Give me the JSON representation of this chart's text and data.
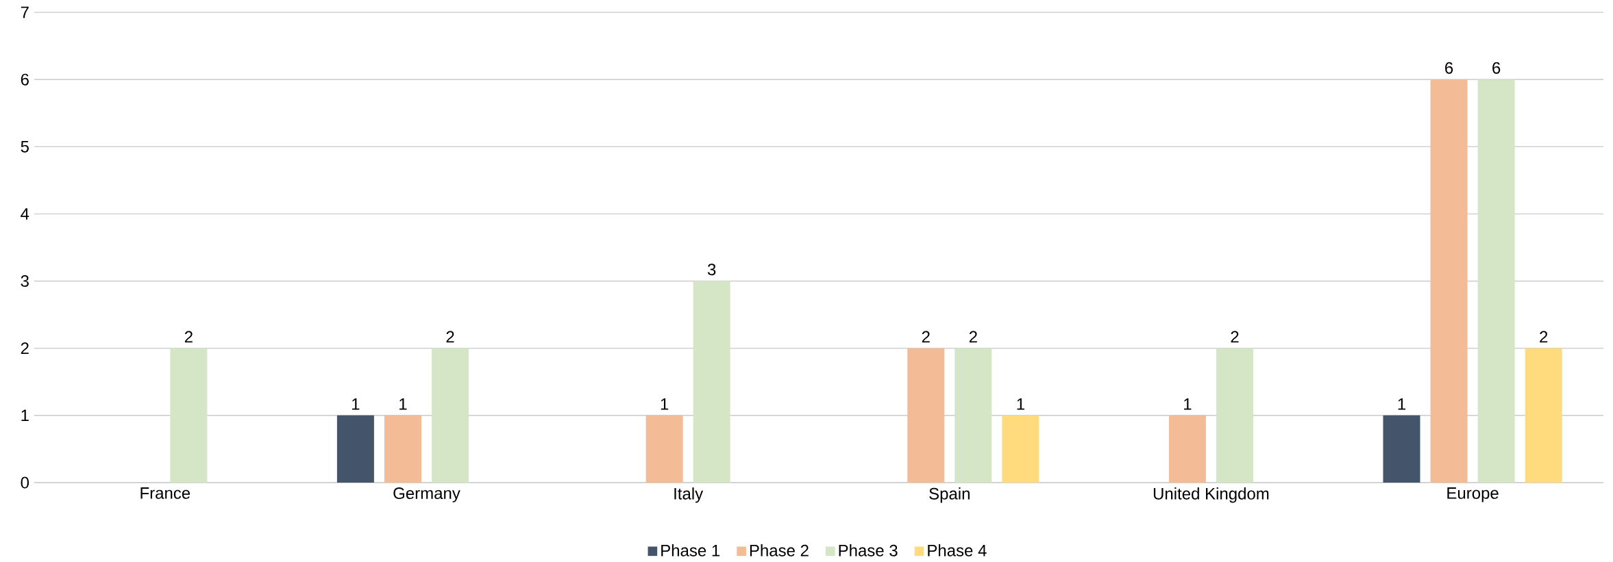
{
  "chart_data": {
    "type": "bar",
    "categories": [
      "France",
      "Germany",
      "Italy",
      "Spain",
      "United Kingdom",
      "Europe"
    ],
    "series": [
      {
        "name": "Phase 1",
        "color": "#44546a",
        "values": [
          null,
          1,
          null,
          null,
          null,
          1
        ]
      },
      {
        "name": "Phase 2",
        "color": "#f4bc96",
        "values": [
          null,
          1,
          1,
          2,
          1,
          6
        ]
      },
      {
        "name": "Phase 3",
        "color": "#d5e6c6",
        "values": [
          2,
          2,
          3,
          2,
          2,
          6
        ]
      },
      {
        "name": "Phase 4",
        "color": "#ffdb7e",
        "values": [
          null,
          null,
          null,
          1,
          null,
          2
        ]
      }
    ],
    "ylim": [
      0,
      7
    ],
    "yticks": [
      0,
      1,
      2,
      3,
      4,
      5,
      6,
      7
    ],
    "grid": "y",
    "legend": "bottom",
    "data_labels": true
  }
}
